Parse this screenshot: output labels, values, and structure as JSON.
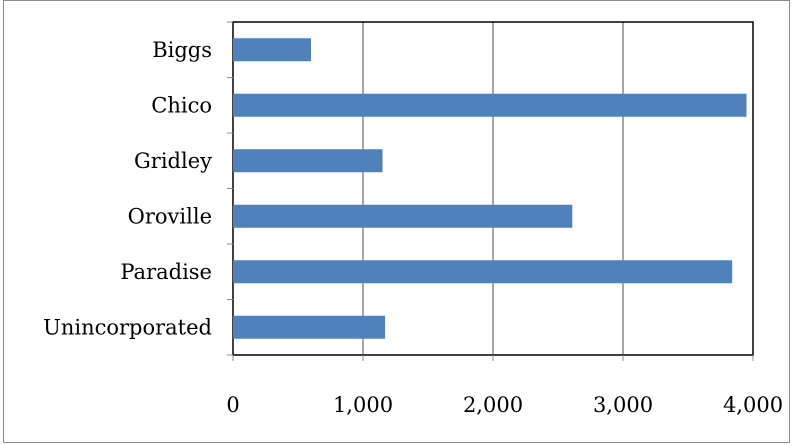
{
  "caption": "",
  "chart_data": {
    "type": "bar",
    "orientation": "horizontal",
    "title": "",
    "xlabel": "",
    "ylabel": "",
    "categories": [
      "Biggs",
      "Chico",
      "Gridley",
      "Oroville",
      "Paradise",
      "Unincorporated"
    ],
    "values": [
      600,
      3950,
      1150,
      2610,
      3840,
      1170
    ],
    "xlim": [
      0,
      4000
    ],
    "x_ticks": [
      0,
      1000,
      2000,
      3000,
      4000
    ],
    "x_tick_labels": [
      "0",
      "1,000",
      "2,000",
      "3,000",
      "4,000"
    ],
    "grid": "vertical",
    "legend": "none",
    "bar_color": "#4f81bd",
    "gridline_color": "#8c8c8c"
  }
}
